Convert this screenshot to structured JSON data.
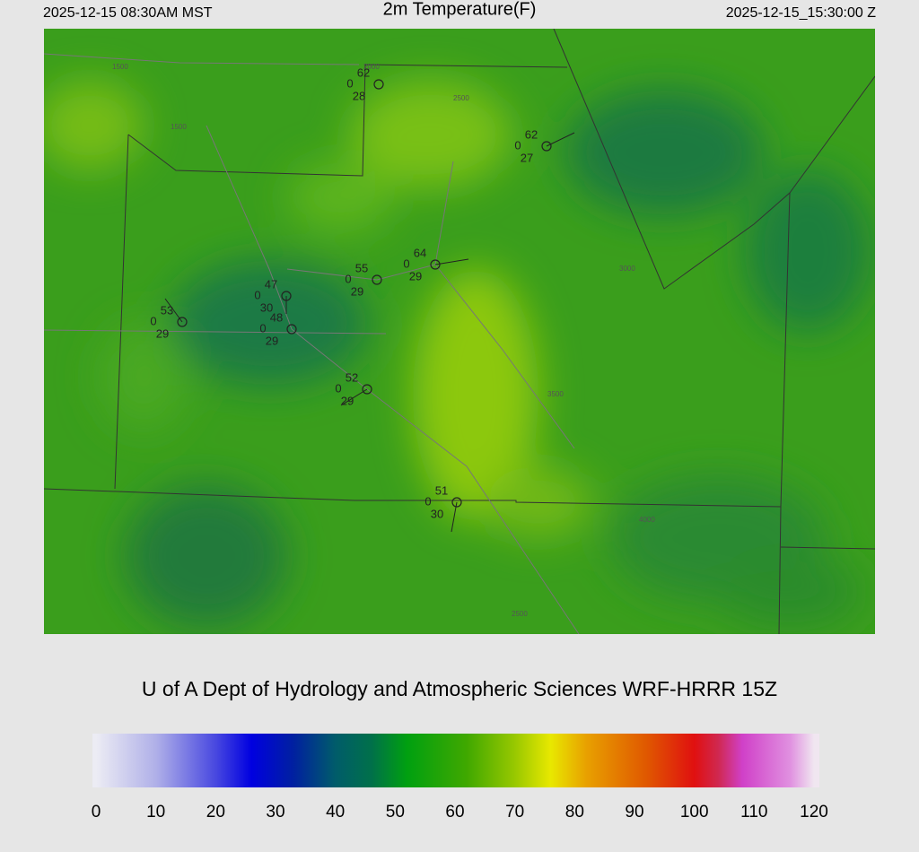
{
  "header": {
    "left": "2025-12-15 08:30AM MST",
    "title": "2m Temperature(F)",
    "right": "2025-12-15_15:30:00 Z"
  },
  "stations": [
    {
      "temperature": 62,
      "wind": 0,
      "dewpoint": 28
    },
    {
      "temperature": 62,
      "wind": 0,
      "dewpoint": 27
    },
    {
      "temperature": 64,
      "wind": 0,
      "dewpoint": 29
    },
    {
      "temperature": 55,
      "wind": 0,
      "dewpoint": 29
    },
    {
      "temperature": 47,
      "wind": 0,
      "dewpoint": 30
    },
    {
      "temperature": 48,
      "wind": 0,
      "dewpoint": 29
    },
    {
      "temperature": 53,
      "wind": 0,
      "dewpoint": 29
    },
    {
      "temperature": 52,
      "wind": 0,
      "dewpoint": 29
    },
    {
      "temperature": 51,
      "wind": 0,
      "dewpoint": 30
    }
  ],
  "contour_labels": [
    "1500",
    "1500",
    "2000",
    "2500",
    "3000",
    "3500",
    "4000",
    "2500"
  ],
  "credit": "U of A Dept of Hydrology and Atmospheric Sciences WRF-HRRR 15Z",
  "colorbar": {
    "lim": [
      0,
      120
    ],
    "ticks": [
      0,
      10,
      20,
      30,
      40,
      50,
      60,
      70,
      80,
      90,
      100,
      110,
      120
    ],
    "stops": [
      [
        0,
        "#ececf4"
      ],
      [
        10,
        "#b0b0e8"
      ],
      [
        20,
        "#4848e0"
      ],
      [
        26,
        "#0000e0"
      ],
      [
        33,
        "#0020a0"
      ],
      [
        40,
        "#005c6a"
      ],
      [
        46,
        "#00704a"
      ],
      [
        52,
        "#00a010"
      ],
      [
        62,
        "#40a800"
      ],
      [
        70,
        "#98c800"
      ],
      [
        76,
        "#e8e800"
      ],
      [
        82,
        "#e8a000"
      ],
      [
        92,
        "#e05800"
      ],
      [
        100,
        "#e01010"
      ],
      [
        104,
        "#d02850"
      ],
      [
        108,
        "#d040c8"
      ],
      [
        116,
        "#e090e0"
      ],
      [
        120,
        "#f0e6f0"
      ]
    ]
  }
}
